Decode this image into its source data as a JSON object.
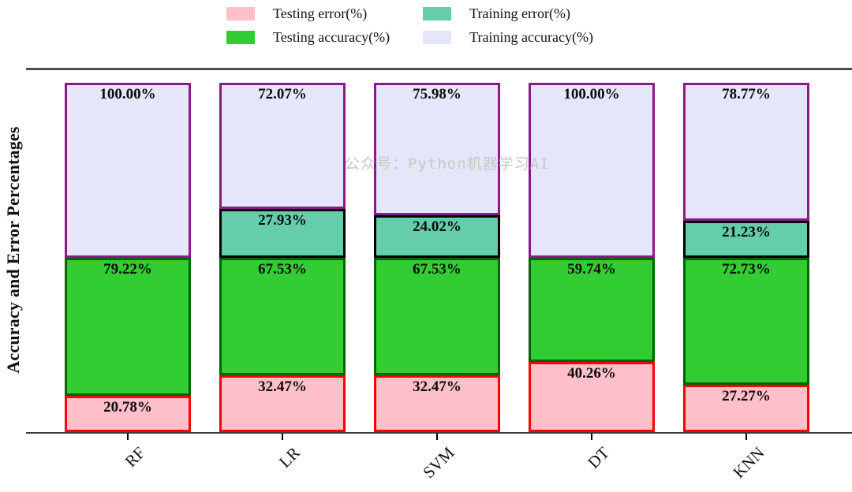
{
  "watermark": "公众号：Python机器学习AI",
  "legend": {
    "position": "top-center",
    "items": [
      {
        "label": "Testing error(%)",
        "color": "#ffc0cb"
      },
      {
        "label": "Testing accuracy(%)",
        "color": "#32cd32"
      },
      {
        "label": "Training error(%)",
        "color": "#66cdaa"
      },
      {
        "label": "Training accuracy(%)",
        "color": "#e6e6fa"
      }
    ]
  },
  "chart_data": {
    "type": "bar",
    "stacked": true,
    "orientation": "vertical",
    "title": "",
    "xlabel": "",
    "ylabel": "Accuracy and Error Percentages",
    "grid": false,
    "y_axis_ticks_visible": false,
    "stack_total": 200,
    "value_label_decimals": 2,
    "value_suffix": "%",
    "categories": [
      "RF",
      "LR",
      "SVM",
      "DT",
      "KNN"
    ],
    "series": [
      {
        "name": "Testing error(%)",
        "fill": "#ffc0cb",
        "edge": "#ff0000",
        "values": [
          20.78,
          32.47,
          32.47,
          40.26,
          27.27
        ]
      },
      {
        "name": "Testing accuracy(%)",
        "fill": "#32cd32",
        "edge": "#006400",
        "values": [
          79.22,
          67.53,
          67.53,
          59.74,
          72.73
        ]
      },
      {
        "name": "Training error(%)",
        "fill": "#66cdaa",
        "edge": "#000000",
        "values": [
          0,
          27.93,
          24.02,
          0,
          21.23
        ]
      },
      {
        "name": "Training accuracy(%)",
        "fill": "#e6e6fa",
        "edge": "#8a1a8a",
        "values": [
          100.0,
          72.07,
          75.98,
          100.0,
          78.77
        ]
      }
    ]
  }
}
